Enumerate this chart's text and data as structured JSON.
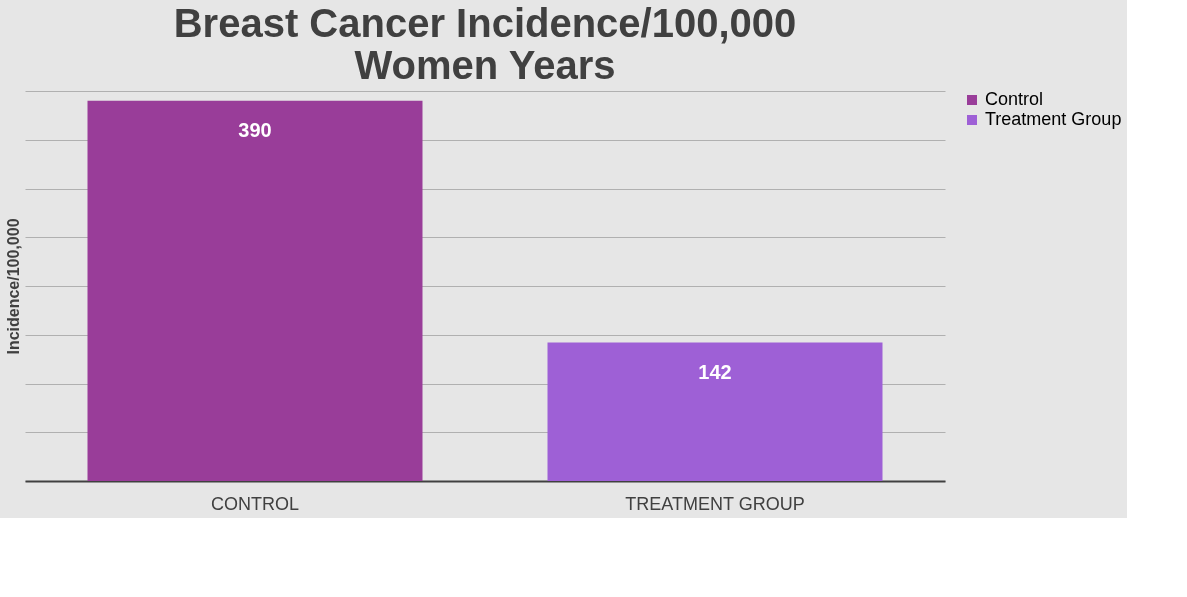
{
  "chart_data": {
    "type": "bar",
    "title": "Breast Cancer Incidence/100,000 Women Years",
    "ylabel": "Incidence/100,000",
    "categories": [
      "CONTROL",
      "TREATMENT GROUP"
    ],
    "series": [
      {
        "name": "Control",
        "color": "#993d99",
        "values": [
          390,
          null
        ]
      },
      {
        "name": "Treatment Group",
        "color": "#9e60d6",
        "values": [
          null,
          142
        ]
      }
    ],
    "ylim": [
      0,
      400
    ],
    "yticks": [
      {
        "value": 0,
        "label": null
      },
      {
        "value": 50,
        "label": null
      },
      {
        "value": 100,
        "label": null
      },
      {
        "value": 150,
        "label": null
      },
      {
        "value": 200,
        "label": null
      },
      {
        "value": 250,
        "label": null
      },
      {
        "value": 300,
        "label": null
      },
      {
        "value": 350,
        "label": null
      },
      {
        "value": 400,
        "label": null
      }
    ],
    "tick_labels": "x",
    "grid": "y",
    "legend": "right",
    "data_labels": true
  }
}
